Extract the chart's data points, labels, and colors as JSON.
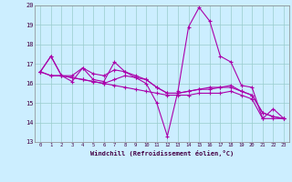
{
  "xlabel": "Windchill (Refroidissement éolien,°C)",
  "bg_color": "#cceeff",
  "line_color": "#aa00aa",
  "grid_color": "#99cccc",
  "x": [
    0,
    1,
    2,
    3,
    4,
    5,
    6,
    7,
    8,
    9,
    10,
    11,
    12,
    13,
    14,
    15,
    16,
    17,
    18,
    19,
    20,
    21,
    22,
    23
  ],
  "series1": [
    16.6,
    17.4,
    16.4,
    16.1,
    16.8,
    16.2,
    16.1,
    17.1,
    16.6,
    16.3,
    16.0,
    15.0,
    13.3,
    15.6,
    18.9,
    19.9,
    19.2,
    17.4,
    17.1,
    15.9,
    15.8,
    14.2,
    14.7,
    14.2
  ],
  "series2": [
    16.6,
    17.4,
    16.4,
    16.4,
    16.8,
    16.5,
    16.4,
    16.7,
    16.6,
    16.4,
    16.2,
    15.8,
    15.5,
    15.5,
    15.6,
    15.7,
    15.8,
    15.8,
    15.9,
    15.6,
    15.4,
    14.5,
    14.3,
    14.2
  ],
  "series3": [
    16.6,
    16.4,
    16.4,
    16.3,
    16.2,
    16.1,
    16.0,
    15.9,
    15.8,
    15.7,
    15.6,
    15.5,
    15.4,
    15.4,
    15.4,
    15.5,
    15.5,
    15.5,
    15.6,
    15.4,
    15.2,
    14.2,
    14.2,
    14.2
  ],
  "series4": [
    16.6,
    16.4,
    16.4,
    16.3,
    16.2,
    16.1,
    16.0,
    16.2,
    16.4,
    16.3,
    16.2,
    15.8,
    15.5,
    15.5,
    15.6,
    15.7,
    15.7,
    15.8,
    15.8,
    15.6,
    15.4,
    14.5,
    14.3,
    14.2
  ],
  "ylim": [
    13,
    20
  ],
  "xlim": [
    -0.5,
    23.5
  ],
  "yticks": [
    13,
    14,
    15,
    16,
    17,
    18,
    19,
    20
  ],
  "xticks": [
    0,
    1,
    2,
    3,
    4,
    5,
    6,
    7,
    8,
    9,
    10,
    11,
    12,
    13,
    14,
    15,
    16,
    17,
    18,
    19,
    20,
    21,
    22,
    23
  ]
}
